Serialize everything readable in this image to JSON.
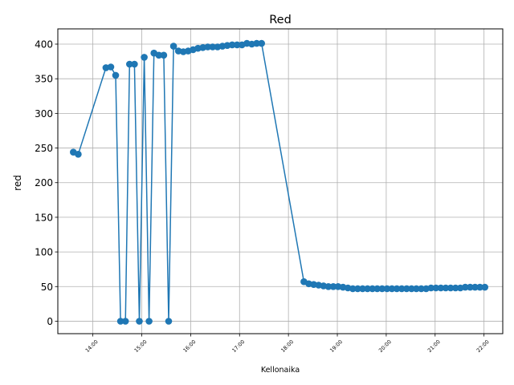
{
  "chart_data": {
    "type": "line",
    "title": "Red",
    "xlabel": "Kellonaika",
    "ylabel": "red",
    "grid": true,
    "xlim": [
      "13:17",
      "22:23"
    ],
    "ylim": [
      -18,
      422
    ],
    "x_ticks": [
      "14:00",
      "15:00",
      "16:00",
      "17:00",
      "18:00",
      "19:00",
      "20:00",
      "21:00",
      "22:00"
    ],
    "y_ticks": [
      0,
      50,
      100,
      150,
      200,
      250,
      300,
      350,
      400
    ],
    "colors": {
      "series": "#1f77b4",
      "grid": "#b0b0b0"
    },
    "series": [
      {
        "marker": "circle",
        "points": [
          [
            "13:36",
            244
          ],
          [
            "13:42",
            241
          ],
          [
            "14:16",
            366
          ],
          [
            "14:22",
            367
          ],
          [
            "14:28",
            355
          ],
          [
            "14:34",
            0
          ],
          [
            "14:40",
            0
          ],
          [
            "14:45",
            371
          ],
          [
            "14:51",
            371
          ],
          [
            "14:57",
            0
          ],
          [
            "15:03",
            381
          ],
          [
            "15:09",
            0
          ],
          [
            "15:15",
            387
          ],
          [
            "15:21",
            384
          ],
          [
            "15:27",
            384
          ],
          [
            "15:33",
            0
          ],
          [
            "15:39",
            397
          ],
          [
            "15:45",
            390
          ],
          [
            "15:51",
            389
          ],
          [
            "15:57",
            390
          ],
          [
            "16:03",
            392
          ],
          [
            "16:09",
            394
          ],
          [
            "16:15",
            395
          ],
          [
            "16:21",
            396
          ],
          [
            "16:27",
            396
          ],
          [
            "16:33",
            396
          ],
          [
            "16:39",
            397
          ],
          [
            "16:45",
            398
          ],
          [
            "16:51",
            399
          ],
          [
            "16:57",
            399
          ],
          [
            "17:03",
            399
          ],
          [
            "17:09",
            401
          ],
          [
            "17:15",
            400
          ],
          [
            "17:21",
            401
          ],
          [
            "17:27",
            401
          ],
          [
            "18:19",
            57
          ],
          [
            "18:25",
            54
          ],
          [
            "18:31",
            53
          ],
          [
            "18:37",
            52
          ],
          [
            "18:43",
            51
          ],
          [
            "18:49",
            50
          ],
          [
            "18:55",
            50
          ],
          [
            "19:01",
            50
          ],
          [
            "19:07",
            49
          ],
          [
            "19:13",
            48
          ],
          [
            "19:19",
            47
          ],
          [
            "19:25",
            47
          ],
          [
            "19:31",
            47
          ],
          [
            "19:37",
            47
          ],
          [
            "19:43",
            47
          ],
          [
            "19:49",
            47
          ],
          [
            "19:55",
            47
          ],
          [
            "20:01",
            47
          ],
          [
            "20:07",
            47
          ],
          [
            "20:13",
            47
          ],
          [
            "20:19",
            47
          ],
          [
            "20:25",
            47
          ],
          [
            "20:31",
            47
          ],
          [
            "20:37",
            47
          ],
          [
            "20:43",
            47
          ],
          [
            "20:49",
            47
          ],
          [
            "20:55",
            48
          ],
          [
            "21:01",
            48
          ],
          [
            "21:07",
            48
          ],
          [
            "21:13",
            48
          ],
          [
            "21:19",
            48
          ],
          [
            "21:25",
            48
          ],
          [
            "21:31",
            48
          ],
          [
            "21:37",
            49
          ],
          [
            "21:43",
            49
          ],
          [
            "21:49",
            49
          ],
          [
            "21:55",
            49
          ],
          [
            "22:01",
            49
          ]
        ]
      }
    ]
  }
}
